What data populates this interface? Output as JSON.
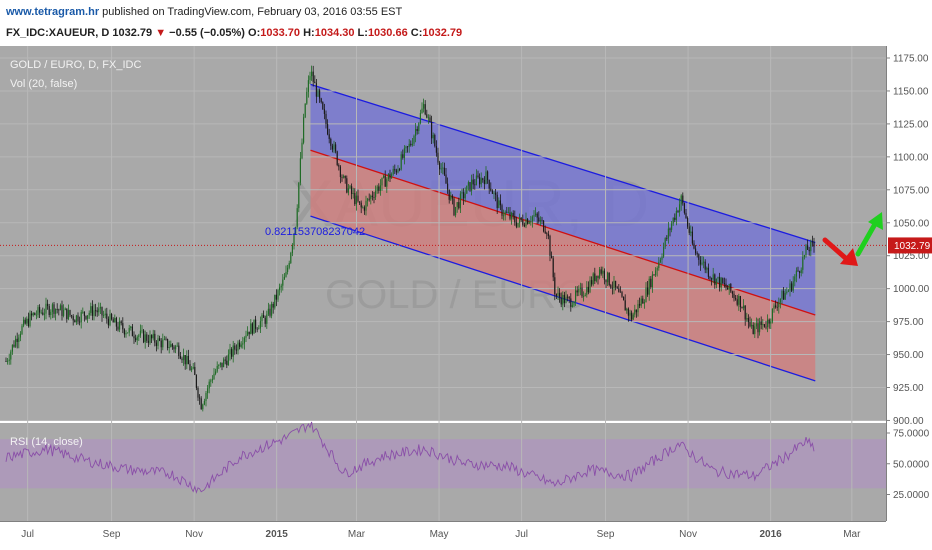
{
  "header": {
    "site": "www.tetragram.hr",
    "published_text": " published on TradingView.com, February 03, 2016 03:55 EST",
    "symbol": "FX_IDC:XAUEUR, D",
    "last": "1032.79",
    "change_arrow": "▼",
    "change": "−0.55 (−0.05%)",
    "o_label": "O:",
    "o_value": "1033.70",
    "h_label": "H:",
    "h_value": "1034.30",
    "l_label": "L:",
    "l_value": "1030.66",
    "c_label": "C:",
    "c_value": "1032.79"
  },
  "legend": {
    "symbol_title": "GOLD / EURO, D, FX_IDC",
    "volume": "Vol (20, false)",
    "rsi": "RSI (14, close)"
  },
  "watermark": {
    "big": "XAUEUR, D",
    "small": "GOLD / EURO"
  },
  "annotation": {
    "fib_label": "0.821153708237042"
  },
  "price_label": "1032.79",
  "colors": {
    "background": "#a9a9a9",
    "candle_up": "#1f6b26",
    "candle_down": "#1a1a1a",
    "channel_upper_fill": "#7070d8",
    "channel_lower_fill": "#d47b7b",
    "channel_line": "#1c1ce0",
    "channel_mid_line": "#d01010",
    "rsi_line": "#8a4fa8",
    "rsi_band": "#b08ec6",
    "arrow_down": "#e01818",
    "arrow_up": "#1fd01f",
    "price_tag": "#c61a1a"
  },
  "chart_data": {
    "type": "candlestick",
    "title": "GOLD / EURO, D, FX_IDC",
    "y_axis": {
      "ticks": [
        "1175.00",
        "1150.00",
        "1125.00",
        "1100.00",
        "1075.00",
        "1050.00",
        "1025.00",
        "1000.00",
        "975.00",
        "950.00",
        "925.00",
        "900.00"
      ],
      "range": [
        900,
        1180
      ]
    },
    "x_axis": {
      "ticks": [
        "Jul",
        "Sep",
        "Nov",
        "2015",
        "Mar",
        "May",
        "Jul",
        "Sep",
        "Nov",
        "2016",
        "Mar"
      ]
    },
    "price_path": [
      [
        "2014-06-15",
        945
      ],
      [
        "2014-06-25",
        968
      ],
      [
        "2014-07-05",
        980
      ],
      [
        "2014-07-20",
        986
      ],
      [
        "2014-08-05",
        978
      ],
      [
        "2014-08-20",
        984
      ],
      [
        "2014-09-05",
        972
      ],
      [
        "2014-09-20",
        965
      ],
      [
        "2014-10-05",
        960
      ],
      [
        "2014-10-20",
        955
      ],
      [
        "2014-11-01",
        935
      ],
      [
        "2014-11-06",
        912
      ],
      [
        "2014-11-15",
        935
      ],
      [
        "2014-11-28",
        950
      ],
      [
        "2014-12-10",
        968
      ],
      [
        "2014-12-25",
        978
      ],
      [
        "2015-01-08",
        1010
      ],
      [
        "2015-01-15",
        1050
      ],
      [
        "2015-01-22",
        1140
      ],
      [
        "2015-01-26",
        1165
      ],
      [
        "2015-02-05",
        1130
      ],
      [
        "2015-02-20",
        1080
      ],
      [
        "2015-03-05",
        1060
      ],
      [
        "2015-03-15",
        1075
      ],
      [
        "2015-03-30",
        1090
      ],
      [
        "2015-04-10",
        1110
      ],
      [
        "2015-04-20",
        1140
      ],
      [
        "2015-04-30",
        1100
      ],
      [
        "2015-05-12",
        1060
      ],
      [
        "2015-05-25",
        1080
      ],
      [
        "2015-06-05",
        1085
      ],
      [
        "2015-06-15",
        1060
      ],
      [
        "2015-06-28",
        1050
      ],
      [
        "2015-07-10",
        1055
      ],
      [
        "2015-07-20",
        1045
      ],
      [
        "2015-07-26",
        995
      ],
      [
        "2015-08-05",
        990
      ],
      [
        "2015-08-18",
        1000
      ],
      [
        "2015-08-28",
        1015
      ],
      [
        "2015-09-08",
        1000
      ],
      [
        "2015-09-20",
        978
      ],
      [
        "2015-09-30",
        995
      ],
      [
        "2015-10-10",
        1020
      ],
      [
        "2015-10-20",
        1050
      ],
      [
        "2015-10-27",
        1068
      ],
      [
        "2015-11-05",
        1030
      ],
      [
        "2015-11-18",
        1010
      ],
      [
        "2015-11-30",
        1000
      ],
      [
        "2015-12-10",
        990
      ],
      [
        "2015-12-18",
        968
      ],
      [
        "2015-12-30",
        975
      ],
      [
        "2016-01-06",
        990
      ],
      [
        "2016-01-15",
        1000
      ],
      [
        "2016-01-22",
        1015
      ],
      [
        "2016-01-28",
        1030
      ],
      [
        "2016-02-03",
        1032.79
      ]
    ],
    "channel": {
      "upper": [
        [
          "2015-01-26",
          1155
        ],
        [
          "2016-02-03",
          1035
        ]
      ],
      "middle": [
        [
          "2015-01-26",
          1105
        ],
        [
          "2016-02-03",
          980
        ]
      ],
      "lower": [
        [
          "2015-01-26",
          1055
        ],
        [
          "2016-02-03",
          930
        ]
      ]
    },
    "horizontal_line": 1032.79,
    "rsi": {
      "ticks": [
        "75.0000",
        "50.0000",
        "25.0000"
      ],
      "range": [
        20,
        85
      ],
      "band": [
        30,
        70
      ],
      "path": [
        [
          "2014-06-15",
          55
        ],
        [
          "2014-07-15",
          62
        ],
        [
          "2014-08-15",
          52
        ],
        [
          "2014-09-15",
          45
        ],
        [
          "2014-10-15",
          42
        ],
        [
          "2014-11-06",
          28
        ],
        [
          "2014-12-05",
          56
        ],
        [
          "2015-01-10",
          72
        ],
        [
          "2015-01-26",
          83
        ],
        [
          "2015-02-20",
          42
        ],
        [
          "2015-03-20",
          56
        ],
        [
          "2015-04-20",
          62
        ],
        [
          "2015-05-20",
          50
        ],
        [
          "2015-06-20",
          48
        ],
        [
          "2015-07-26",
          33
        ],
        [
          "2015-08-20",
          45
        ],
        [
          "2015-09-20",
          40
        ],
        [
          "2015-10-25",
          66
        ],
        [
          "2015-11-20",
          44
        ],
        [
          "2015-12-20",
          40
        ],
        [
          "2016-01-15",
          58
        ],
        [
          "2016-01-27",
          68
        ],
        [
          "2016-02-03",
          62
        ]
      ]
    }
  }
}
